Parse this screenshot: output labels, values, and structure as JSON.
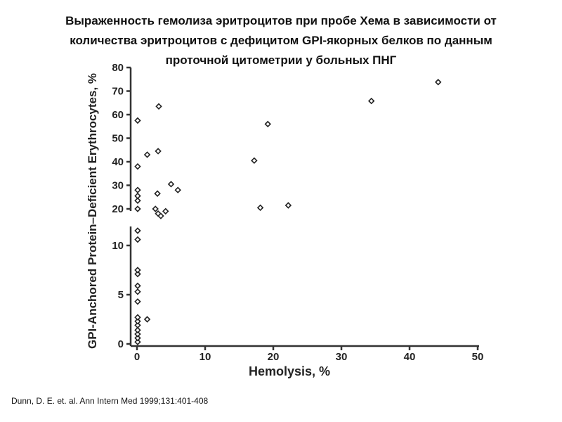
{
  "slide": {
    "title_lines": [
      "Выраженность гемолиза эритроцитов при пробе Хема в зависимости от",
      "количества эритроцитов с дефицитом GPI-якорных белков по данным",
      "проточной цитометрии у больных ПНГ"
    ],
    "citation": "Dunn, D. E. et. al. Ann Intern Med 1999;131:401-408"
  },
  "chart_data": {
    "type": "scatter",
    "title": "",
    "xlabel": "Hemolysis, %",
    "ylabel": "GPI-Anchored Protein–Deficient Erythrocytes, %",
    "xlim": [
      0,
      50
    ],
    "x_ticks": [
      0,
      10,
      20,
      30,
      40,
      50
    ],
    "y_axis_broken": true,
    "y_lower_range": [
      0,
      12
    ],
    "y_upper_range": [
      15,
      80
    ],
    "y_ticks_lower": [
      0,
      5,
      10
    ],
    "y_ticks_upper": [
      20,
      30,
      40,
      50,
      60,
      70,
      80
    ],
    "marker": "open-diamond",
    "grid": false,
    "points": [
      {
        "x": 0.1,
        "y": 0.2
      },
      {
        "x": 0.1,
        "y": 0.6
      },
      {
        "x": 0.1,
        "y": 1.0
      },
      {
        "x": 0.1,
        "y": 1.4
      },
      {
        "x": 0.1,
        "y": 1.9
      },
      {
        "x": 0.1,
        "y": 2.3
      },
      {
        "x": 0.1,
        "y": 2.7
      },
      {
        "x": 1.5,
        "y": 2.5
      },
      {
        "x": 0.1,
        "y": 4.3
      },
      {
        "x": 0.1,
        "y": 5.3
      },
      {
        "x": 0.1,
        "y": 5.9
      },
      {
        "x": 0.1,
        "y": 7.1
      },
      {
        "x": 0.1,
        "y": 7.5
      },
      {
        "x": 0.1,
        "y": 10.6
      },
      {
        "x": 0.1,
        "y": 11.5
      },
      {
        "x": 0.1,
        "y": 20.0
      },
      {
        "x": 0.1,
        "y": 23.5
      },
      {
        "x": 0.1,
        "y": 25.5
      },
      {
        "x": 0.1,
        "y": 28.0
      },
      {
        "x": 0.1,
        "y": 38.0
      },
      {
        "x": 0.1,
        "y": 57.5
      },
      {
        "x": 1.5,
        "y": 43.0
      },
      {
        "x": 2.7,
        "y": 20.0
      },
      {
        "x": 3.0,
        "y": 26.5
      },
      {
        "x": 3.1,
        "y": 18.0
      },
      {
        "x": 3.5,
        "y": 17.0
      },
      {
        "x": 4.2,
        "y": 19.0
      },
      {
        "x": 3.1,
        "y": 44.5
      },
      {
        "x": 3.2,
        "y": 63.5
      },
      {
        "x": 5.0,
        "y": 30.5
      },
      {
        "x": 6.0,
        "y": 28.0
      },
      {
        "x": 17.2,
        "y": 40.5
      },
      {
        "x": 18.1,
        "y": 20.5
      },
      {
        "x": 19.2,
        "y": 56.0
      },
      {
        "x": 22.2,
        "y": 21.5
      },
      {
        "x": 34.4,
        "y": 65.8
      },
      {
        "x": 44.2,
        "y": 73.8
      }
    ]
  }
}
